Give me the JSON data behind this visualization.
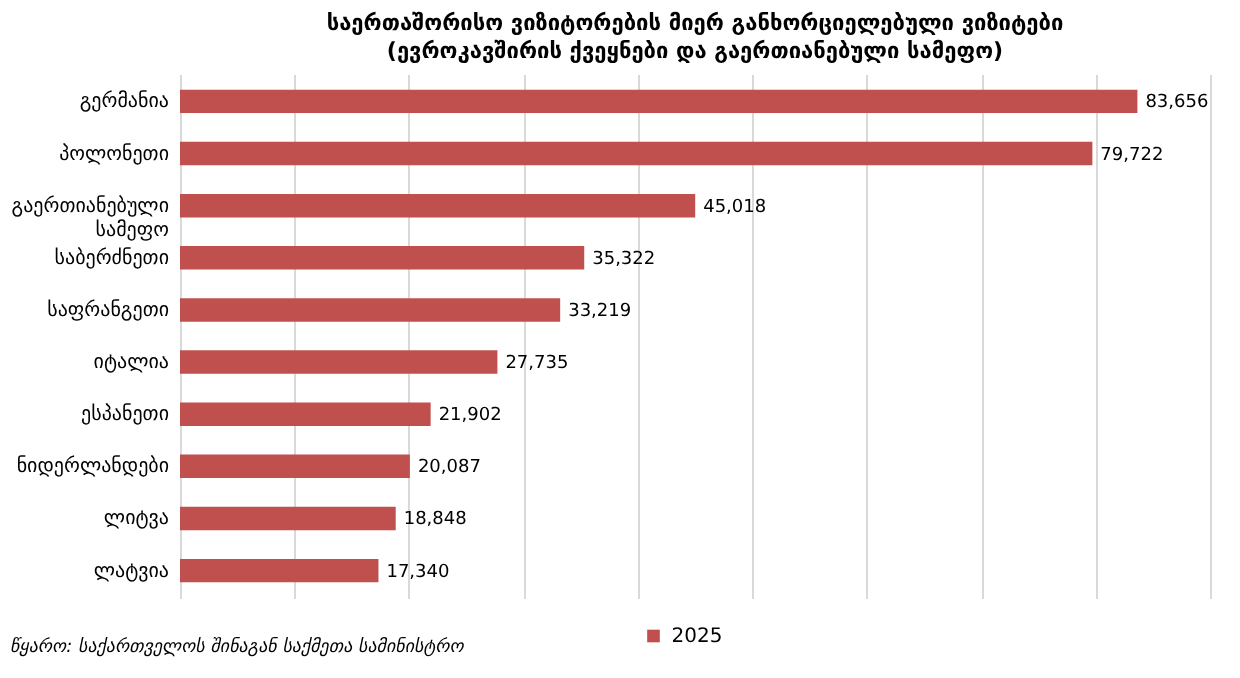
{
  "chart_data": {
    "type": "bar",
    "orientation": "horizontal",
    "title": "საერთაშორისო ვიზიტორების მიერ განხორციელებული ვიზიტები",
    "subtitle": "(ევროკავშირის ქვეყნები და  გაერთიანებული სამეფო)",
    "categories": [
      "გერმანია",
      "პოლონეთი",
      "გაერთიანებული სამეფო",
      "საბერძნეთი",
      "საფრანგეთი",
      "იტალია",
      "ესპანეთი",
      "ნიდერლანდები",
      "ლიტვა",
      "ლატვია"
    ],
    "series": [
      {
        "name": "2025",
        "color": "#c0504d",
        "values": [
          83656,
          79722,
          45018,
          35322,
          33219,
          27735,
          21902,
          20087,
          18848,
          17340
        ],
        "value_labels": [
          "83,656",
          "79,722",
          "45,018",
          "35,322",
          "33,219",
          "27,735",
          "21,902",
          "20,087",
          "18,848",
          "17,340"
        ]
      }
    ],
    "tick_labels": "y",
    "grid": "x",
    "legend": "bottom",
    "annotations": [
      "წყარო: საქართველოს შინაგან საქმეთა სამინისტრო"
    ]
  }
}
